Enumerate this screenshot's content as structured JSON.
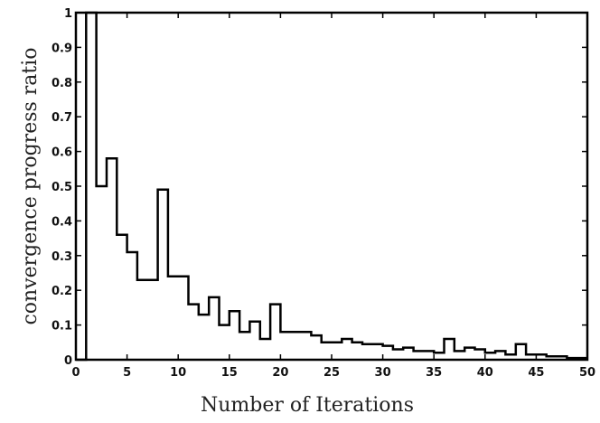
{
  "chart_data": {
    "type": "line",
    "step": true,
    "title": "",
    "xlabel": "Number of Iterations",
    "ylabel": "convergence progress ratio",
    "xlim": [
      0,
      50
    ],
    "ylim": [
      0,
      1
    ],
    "x_ticks": [
      0,
      5,
      10,
      15,
      20,
      25,
      30,
      35,
      40,
      45,
      50
    ],
    "y_ticks": [
      0,
      0.1,
      0.2,
      0.3,
      0.4,
      0.5,
      0.6,
      0.7,
      0.8,
      0.9,
      1
    ],
    "y_tick_labels": [
      "0",
      "0.1",
      "0.2",
      "0.3",
      "0.4",
      "0.5",
      "0.6",
      "0.7",
      "0.8",
      "0.9",
      "1"
    ],
    "x_tick_labels": [
      "0",
      "5",
      "10",
      "15",
      "20",
      "25",
      "30",
      "35",
      "40",
      "45",
      "50"
    ],
    "grid": false,
    "line_color": "#000000",
    "series": [
      {
        "x": [
          0,
          1,
          2,
          3,
          4,
          5,
          6,
          7,
          8,
          9,
          10,
          11,
          12,
          13,
          14,
          15,
          16,
          17,
          18,
          19,
          20,
          21,
          22,
          23,
          24,
          25,
          26,
          27,
          28,
          29,
          30,
          31,
          32,
          33,
          34,
          35,
          36,
          37,
          38,
          39,
          40,
          41,
          42,
          43,
          44,
          45,
          46,
          47,
          48,
          49,
          50
        ],
        "y": [
          0,
          1.0,
          0.5,
          0.58,
          0.36,
          0.31,
          0.23,
          0.23,
          0.49,
          0.24,
          0.24,
          0.16,
          0.13,
          0.18,
          0.1,
          0.14,
          0.08,
          0.11,
          0.06,
          0.16,
          0.08,
          0.08,
          0.08,
          0.07,
          0.05,
          0.05,
          0.06,
          0.05,
          0.045,
          0.045,
          0.04,
          0.03,
          0.035,
          0.025,
          0.025,
          0.02,
          0.06,
          0.025,
          0.035,
          0.03,
          0.02,
          0.025,
          0.015,
          0.045,
          0.015,
          0.015,
          0.01,
          0.01,
          0.005,
          0.005,
          0.005
        ]
      }
    ]
  }
}
